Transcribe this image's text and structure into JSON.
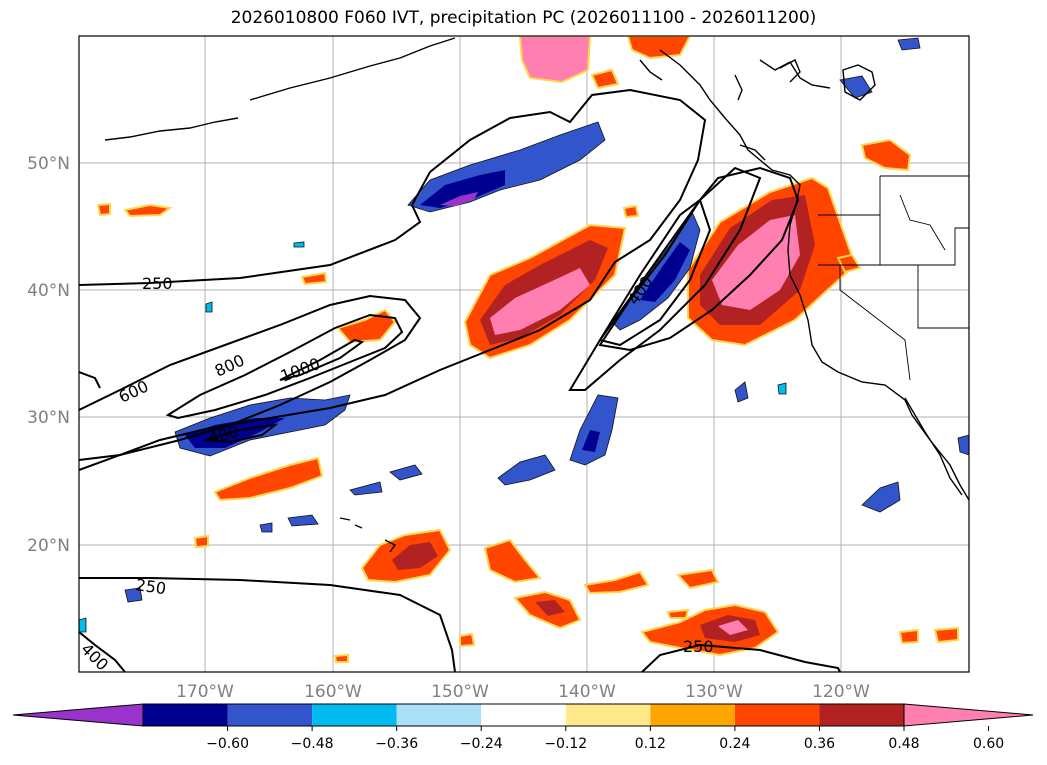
{
  "title": "2026010800 F060 IVT, precipitation PC (2026011100 - 2026011200)",
  "map": {
    "lon_labels": [
      "170°W",
      "160°W",
      "150°W",
      "140°W",
      "130°W",
      "120°W"
    ],
    "lat_labels": [
      "50°N",
      "40°N",
      "30°N",
      "20°N"
    ],
    "grid": true
  },
  "ivt_contour_labels": [
    "250",
    "600",
    "800",
    "1000",
    "400",
    "400",
    "250",
    "400",
    "250"
  ],
  "colorbar": {
    "tick_labels": [
      "−0.60",
      "−0.48",
      "−0.36",
      "−0.24",
      "−0.12",
      "0.12",
      "0.24",
      "0.36",
      "0.48",
      "0.60"
    ],
    "colors": [
      "#9933cc",
      "#000090",
      "#3355cc",
      "#00bbf0",
      "#aadff8",
      "#ffffff",
      "#ffe98a",
      "#ffa500",
      "#ff4500",
      "#b22222",
      "#ff80b0"
    ],
    "extend": "both"
  }
}
